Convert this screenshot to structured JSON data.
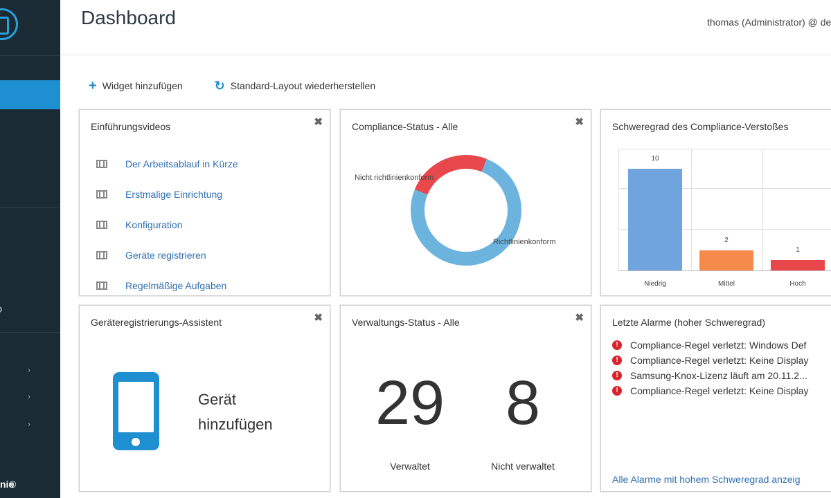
{
  "sidebar": {
    "brand_fragment": "nie",
    "copyright": "©"
  },
  "header": {
    "title": "Dashboard",
    "user": "thomas (Administrator) @ dem"
  },
  "toolbar": {
    "add_widget": "Widget hinzufügen",
    "reset_layout": "Standard-Layout wiederherstellen"
  },
  "videos": {
    "title": "Einführungsvideos",
    "close": "✖",
    "items": [
      "Der Arbeitsablauf in Kürze",
      "Erstmalige Einrichtung",
      "Konfiguration",
      "Geräte registrieren",
      "Regelmäßige Aufgaben"
    ]
  },
  "compliance": {
    "title": "Compliance-Status - Alle",
    "close": "✖",
    "chart_data": {
      "type": "pie",
      "categories": [
        "Nicht richtlinienkonform",
        "Richtlinienkonform"
      ],
      "values": [
        25,
        75
      ],
      "colors": [
        "#e8474c",
        "#6cb4de"
      ]
    }
  },
  "severity": {
    "title": "Schweregrad des Compliance-Verstoßes",
    "chart_data": {
      "type": "bar",
      "categories": [
        "Niedrig",
        "Mittel",
        "Hoch"
      ],
      "values": [
        10,
        2,
        1
      ],
      "colors": [
        "#6fa4dc",
        "#f68a4a",
        "#e8474c"
      ],
      "ylim": [
        0,
        12
      ]
    }
  },
  "assistant": {
    "title": "Geräteregistrierungs-Assistent",
    "close": "✖",
    "action_line1": "Gerät",
    "action_line2": "hinzufügen"
  },
  "management": {
    "title": "Verwaltungs-Status - Alle",
    "close": "✖",
    "managed_count": "29",
    "managed_label": "Verwaltet",
    "unmanaged_count": "8",
    "unmanaged_label": "Nicht verwaltet"
  },
  "alarms": {
    "title": "Letzte Alarme (hoher Schweregrad)",
    "icon_glyph": "!",
    "items": [
      "Compliance-Regel verletzt: Windows Def",
      "Compliance-Regel verletzt: Keine Display",
      "Samsung-Knox-Lizenz läuft am 20.11.2...",
      "Compliance-Regel verletzt: Keine Display"
    ],
    "link": "Alle Alarme mit hohem Schweregrad anzeig"
  }
}
